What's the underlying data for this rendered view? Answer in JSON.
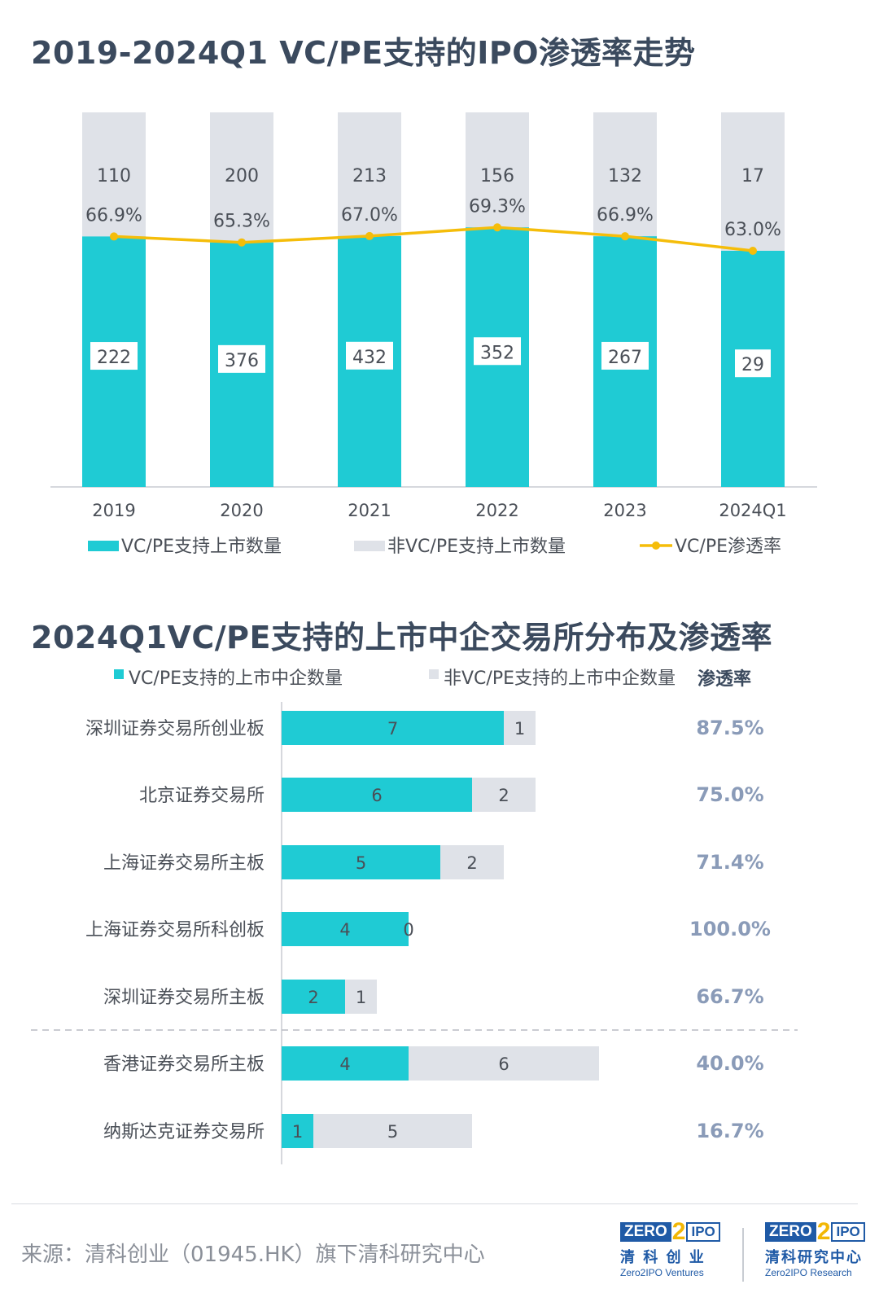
{
  "title_top": "2019-2024Q1 VC/PE支持的IPO渗透率走势",
  "title_bottom": "2024Q1VC/PE支持的上市中企交易所分布及渗透率",
  "colors": {
    "teal": "#1fcbd4",
    "grey": "#dfe2e8",
    "line": "#f5bd0a",
    "text": "#3b4a5e",
    "pct": "#8a9bb8"
  },
  "chart_data": [
    {
      "type": "bar",
      "stacked": true,
      "categories": [
        "2019",
        "2020",
        "2021",
        "2022",
        "2023",
        "2024Q1"
      ],
      "series": [
        {
          "name": "VC/PE支持上市数量",
          "values": [
            222,
            376,
            432,
            352,
            267,
            29
          ]
        },
        {
          "name": "非VC/PE支持上市数量",
          "values": [
            110,
            200,
            213,
            156,
            132,
            17
          ]
        }
      ],
      "line_series": {
        "name": "VC/PE渗透率",
        "values": [
          66.9,
          65.3,
          67.0,
          69.3,
          66.9,
          63.0
        ],
        "labels": [
          "66.9%",
          "65.3%",
          "67.0%",
          "69.3%",
          "66.9%",
          "63.0%"
        ]
      },
      "legend": "bottom"
    },
    {
      "type": "bar",
      "orientation": "horizontal",
      "stacked": true,
      "categories": [
        "深圳证券交易所创业板",
        "北京证券交易所",
        "上海证券交易所主板",
        "上海证券交易所科创板",
        "深圳证券交易所主板",
        "香港证券交易所主板",
        "纳斯达克证券交易所"
      ],
      "series": [
        {
          "name": "VC/PE支持的上市中企数量",
          "values": [
            7,
            6,
            5,
            4,
            2,
            4,
            1
          ]
        },
        {
          "name": "非VC/PE支持的上市中企数量",
          "values": [
            1,
            2,
            2,
            0,
            1,
            6,
            5
          ]
        }
      ],
      "rate_header": "渗透率",
      "rates": [
        "87.5%",
        "75.0%",
        "71.4%",
        "100.0%",
        "66.7%",
        "40.0%",
        "16.7%"
      ],
      "legend": "top"
    }
  ],
  "footer": {
    "source": "来源：清科创业（01945.HK）旗下清科研究中心",
    "logo1": {
      "zero": "ZERO",
      "two": "2",
      "ipo": "IPO",
      "cn": "清 科 创 业",
      "en": "Zero2IPO Ventures"
    },
    "logo2": {
      "zero": "ZERO",
      "two": "2",
      "ipo": "IPO",
      "cn": "清科研究中心",
      "en": "Zero2IPO Research"
    }
  }
}
